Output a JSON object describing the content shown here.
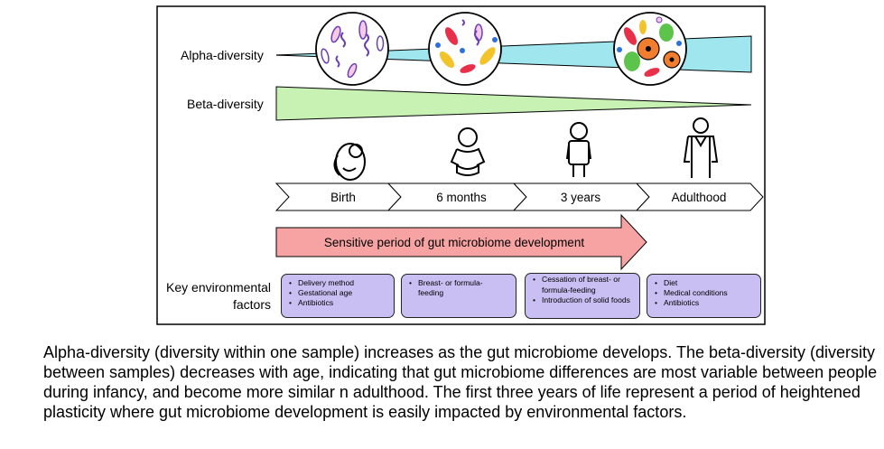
{
  "labels": {
    "alpha": "Alpha-diversity",
    "beta": "Beta-diversity",
    "key_factors": "Key environmental\nfactors"
  },
  "timeline": [
    "Birth",
    "6 months",
    "3 years",
    "Adulthood"
  ],
  "sensitive_period": "Sensitive period of gut microbiome development",
  "factors": [
    [
      "Delivery method",
      "Gestational age",
      "Antibiotics"
    ],
    [
      "Breast- or formula-feeding"
    ],
    [
      "Cessation of breast- or formula-feeding",
      "Introduction of solid foods"
    ],
    [
      "Diet",
      "Medical conditions",
      "Antibiotics"
    ]
  ],
  "icons": [
    "fetus-icon",
    "infant-icon",
    "toddler-icon",
    "adult-icon"
  ],
  "colors": {
    "alpha_wedge": "#9fe6ee",
    "beta_wedge": "#c8f2b3",
    "sensitive_arrow": "#f7a3a3",
    "factor_box": "#c9bff2"
  },
  "caption": "Alpha-diversity (diversity within one sample) increases as the gut microbiome develops. The beta-diversity (diversity between samples) decreases with age, indicating that gut microbiome differences are most variable between people during infancy, and become more similar n adulthood. The first three years of life represent a period of heightened plasticity where gut microbiome development is easily impacted by environmental factors."
}
